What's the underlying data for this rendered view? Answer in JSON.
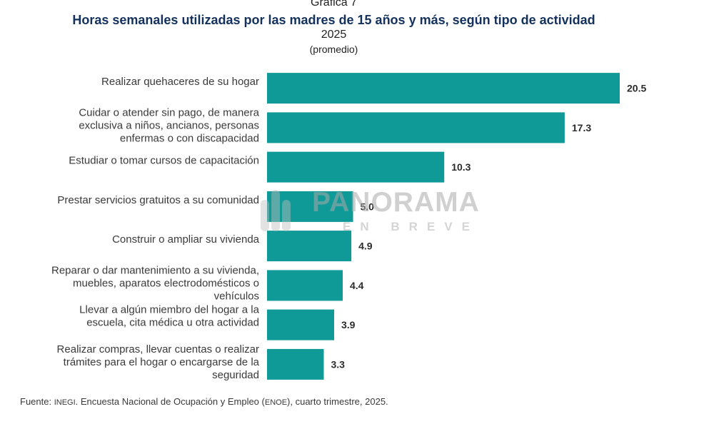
{
  "header": {
    "kicker": "Gráfica 7",
    "title": "Horas semanales utilizadas por las madres de 15 años y más, según tipo de actividad",
    "year": "2025",
    "unit": "(promedio)"
  },
  "watermark": {
    "word": "PANORAMA",
    "sub": "EN BREVE"
  },
  "source": {
    "prefix": "Fuente: ",
    "agency": "INEGI",
    "middle": ". Encuesta Nacional de Ocupación y Empleo (",
    "acronym": "ENOE",
    "suffix": "), cuarto trimestre, 2025."
  },
  "colors": {
    "bar": "#0f9a98",
    "title": "#13315c"
  },
  "chart_data": {
    "type": "bar",
    "orientation": "horizontal",
    "title": "Horas semanales utilizadas por las madres de 15 años y más, según tipo de actividad",
    "subtitle": "2025 (promedio)",
    "xlabel": "",
    "ylabel": "",
    "xlim": [
      0,
      20.5
    ],
    "grid": false,
    "legend": "none",
    "categories": [
      [
        "Realizar quehaceres de su hogar"
      ],
      [
        "Cuidar o atender sin pago, de manera",
        "exclusiva a niños, ancianos, personas",
        "enfermas o con discapacidad"
      ],
      [
        "Estudiar o tomar cursos de capacitación"
      ],
      [
        "Prestar servicios gratuitos a su comunidad"
      ],
      [
        "Construir o ampliar su vivienda"
      ],
      [
        "Reparar o dar mantenimiento a su vivienda,",
        "muebles, aparatos electrodomésticos o",
        "vehículos"
      ],
      [
        "Llevar a algún miembro del hogar a la",
        "escuela, cita médica u otra actividad"
      ],
      [
        "Realizar compras, llevar cuentas o realizar",
        "trámites para el hogar o encargarse de la",
        "seguridad"
      ]
    ],
    "values": [
      20.5,
      17.3,
      10.3,
      5.0,
      4.9,
      4.4,
      3.9,
      3.3
    ],
    "value_labels": [
      "20.5",
      "17.3",
      "10.3",
      "5.0",
      "4.9",
      "4.4",
      "3.9",
      "3.3"
    ]
  }
}
